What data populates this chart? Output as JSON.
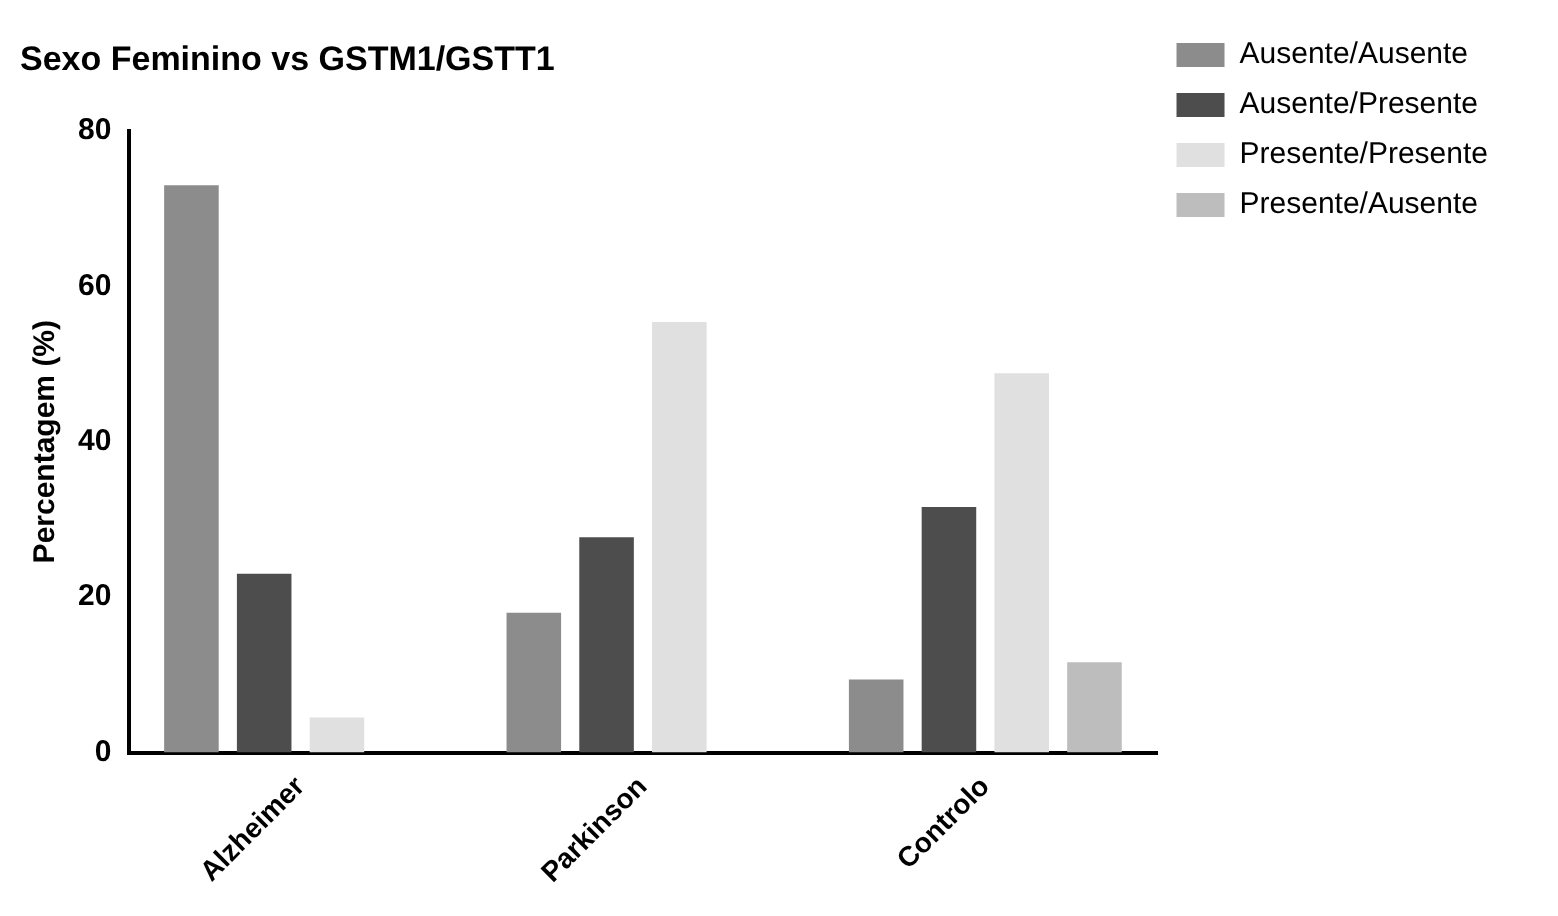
{
  "chart_data": {
    "type": "bar",
    "title": "Sexo Feminino vs GSTM1/GSTT1",
    "ylabel": "Percentagem (%)",
    "categories": [
      "Alzheimer",
      "Parkinson",
      "Controlo"
    ],
    "series": [
      {
        "name": "Ausente/Ausente",
        "color": "#8c8c8c",
        "values": [
          73,
          18,
          9.4
        ]
      },
      {
        "name": "Ausente/Presente",
        "color": "#4d4d4d",
        "values": [
          23,
          27.7,
          31.6
        ]
      },
      {
        "name": "Presente/Presente",
        "color": "#e0e0e0",
        "values": [
          4.5,
          55.4,
          48.8
        ]
      },
      {
        "name": "Presente/Ausente",
        "color": "#bdbdbd",
        "values": [
          null,
          null,
          11.6
        ]
      }
    ],
    "ylim": [
      0,
      80
    ],
    "yticks": [
      0,
      20,
      40,
      60,
      80
    ],
    "grid": false,
    "legend": "top right"
  }
}
